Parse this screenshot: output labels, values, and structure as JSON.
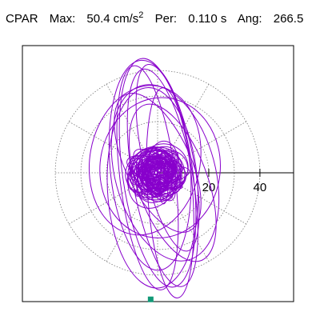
{
  "header": {
    "component": "CPAR",
    "max_label": "Max:",
    "max_value": "50.4",
    "max_unit": "cm/s",
    "max_exp": "2",
    "period_label": "Per:",
    "period_value": "0.110 s",
    "angle_label": "Ang:",
    "angle_value": "266.5"
  },
  "chart_data": {
    "type": "scatter",
    "title": "",
    "polar": true,
    "radial_ticks": [
      20,
      40
    ],
    "tick_labels": [
      "20",
      "40"
    ],
    "rlim": [
      0,
      50.4
    ],
    "grid": "dotted-polar",
    "series": [
      {
        "style": "line",
        "color": "#8800cc",
        "description_points": [
          [
            0,
            0
          ],
          [
            5,
            -3
          ],
          [
            -6,
            4
          ],
          [
            8,
            10
          ],
          [
            -10,
            -12
          ],
          [
            12,
            -20
          ],
          [
            -8,
            25
          ],
          [
            4,
            35
          ],
          [
            10,
            44
          ],
          [
            -3,
            40
          ],
          [
            6,
            14
          ],
          [
            -12,
            -25
          ],
          [
            -4,
            -46
          ],
          [
            3,
            -49
          ],
          [
            -8,
            -30
          ],
          [
            9,
            30
          ],
          [
            13,
            45
          ],
          [
            -14,
            20
          ],
          [
            7,
            -10
          ],
          [
            14,
            -38
          ],
          [
            -5,
            -42
          ],
          [
            -15,
            5
          ],
          [
            10,
            5
          ],
          [
            -3,
            -1
          ]
        ]
      }
    ],
    "peak_marker": {
      "angle_deg": 266.5,
      "value": 50.4,
      "color": "#119977"
    }
  }
}
